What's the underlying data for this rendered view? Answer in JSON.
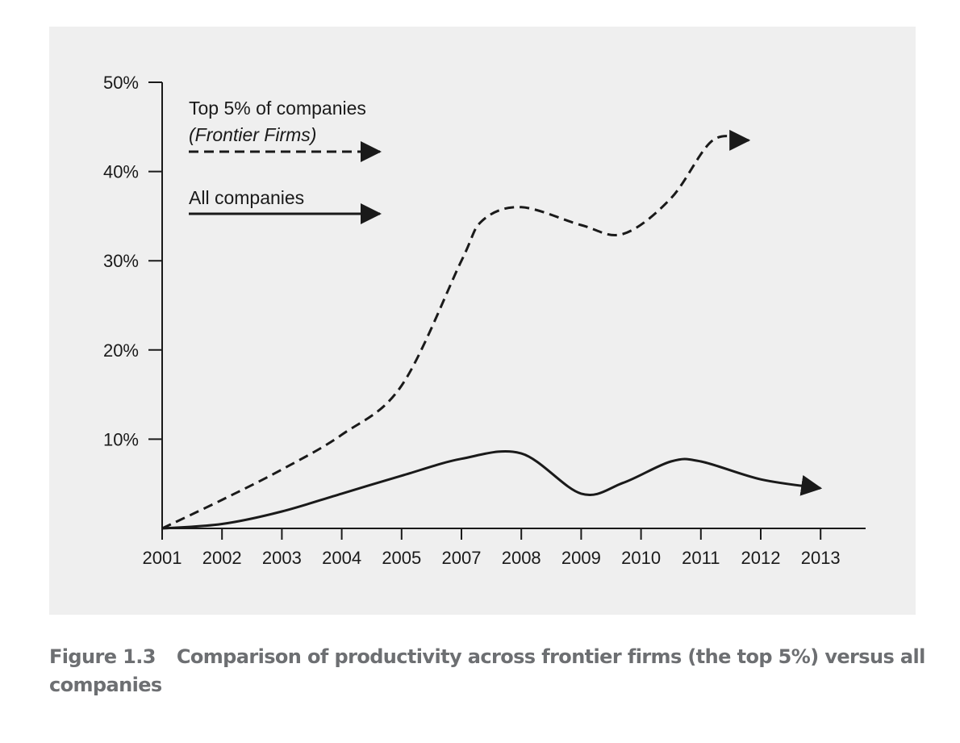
{
  "chart_data": {
    "type": "line",
    "title": "",
    "xlabel": "",
    "ylabel": "",
    "categories": [
      "2001",
      "2002",
      "2003",
      "2004",
      "2005",
      "2007",
      "2008",
      "2009",
      "2010",
      "2011",
      "2012",
      "2013"
    ],
    "y_ticks": [
      "50%",
      "40%",
      "30%",
      "20%",
      "10%"
    ],
    "ylim": [
      0,
      50
    ],
    "grid": false,
    "legend_position": "top-left",
    "series": [
      {
        "name": "Top 5% of companies",
        "name_sub": "(Frontier Firms)",
        "style": "dashed",
        "color": "#1a1a1a",
        "x": [
          0,
          1,
          2,
          3,
          4,
          5,
          5.35,
          6,
          7,
          7.7,
          8.5,
          9.2,
          9.8
        ],
        "y": [
          0,
          3.2,
          6.6,
          10.5,
          16,
          30,
          34.5,
          36,
          34,
          33,
          37,
          43.5,
          43.5
        ]
      },
      {
        "name": "All companies",
        "style": "solid",
        "color": "#1a1a1a",
        "x": [
          0,
          1,
          2,
          3,
          4,
          5,
          6,
          7,
          7.7,
          8.5,
          9,
          10,
          11
        ],
        "y": [
          0,
          0.5,
          1.9,
          3.9,
          5.9,
          7.8,
          8.4,
          3.9,
          5.1,
          7.5,
          7.5,
          5.5,
          4.5
        ]
      }
    ]
  },
  "caption": {
    "label": "Figure 1.3",
    "text": "Comparison of productivity across frontier firms (the top 5%) versus all companies"
  }
}
